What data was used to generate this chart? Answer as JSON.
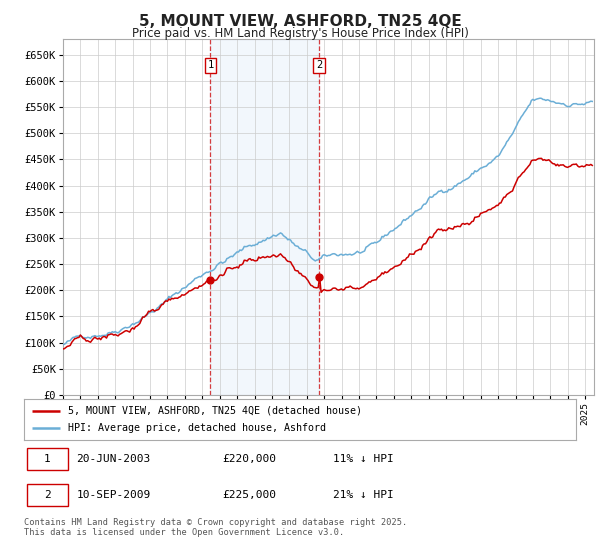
{
  "title": "5, MOUNT VIEW, ASHFORD, TN25 4QE",
  "subtitle": "Price paid vs. HM Land Registry's House Price Index (HPI)",
  "ylabel_ticks": [
    "£0",
    "£50K",
    "£100K",
    "£150K",
    "£200K",
    "£250K",
    "£300K",
    "£350K",
    "£400K",
    "£450K",
    "£500K",
    "£550K",
    "£600K",
    "£650K"
  ],
  "ytick_values": [
    0,
    50000,
    100000,
    150000,
    200000,
    250000,
    300000,
    350000,
    400000,
    450000,
    500000,
    550000,
    600000,
    650000
  ],
  "ylim": [
    0,
    680000
  ],
  "xlim_start": 1995.0,
  "xlim_end": 2025.5,
  "hpi_color": "#6baed6",
  "price_color": "#cc0000",
  "sale1_date": 2003.47,
  "sale1_price": 220000,
  "sale2_date": 2009.71,
  "sale2_price": 225000,
  "legend_line1": "5, MOUNT VIEW, ASHFORD, TN25 4QE (detached house)",
  "legend_line2": "HPI: Average price, detached house, Ashford",
  "table_row1": [
    "1",
    "20-JUN-2003",
    "£220,000",
    "11% ↓ HPI"
  ],
  "table_row2": [
    "2",
    "10-SEP-2009",
    "£225,000",
    "21% ↓ HPI"
  ],
  "footer": "Contains HM Land Registry data © Crown copyright and database right 2025.\nThis data is licensed under the Open Government Licence v3.0.",
  "background_color": "#ffffff",
  "grid_color": "#cccccc",
  "highlight_color": "#ddeeff"
}
